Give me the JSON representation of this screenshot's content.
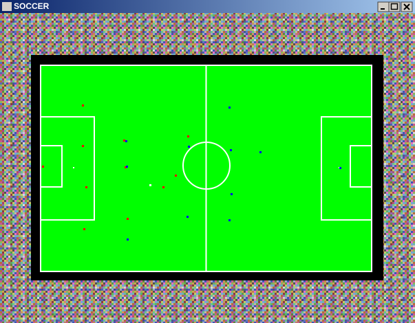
{
  "window": {
    "title": "SOCCER"
  }
}
